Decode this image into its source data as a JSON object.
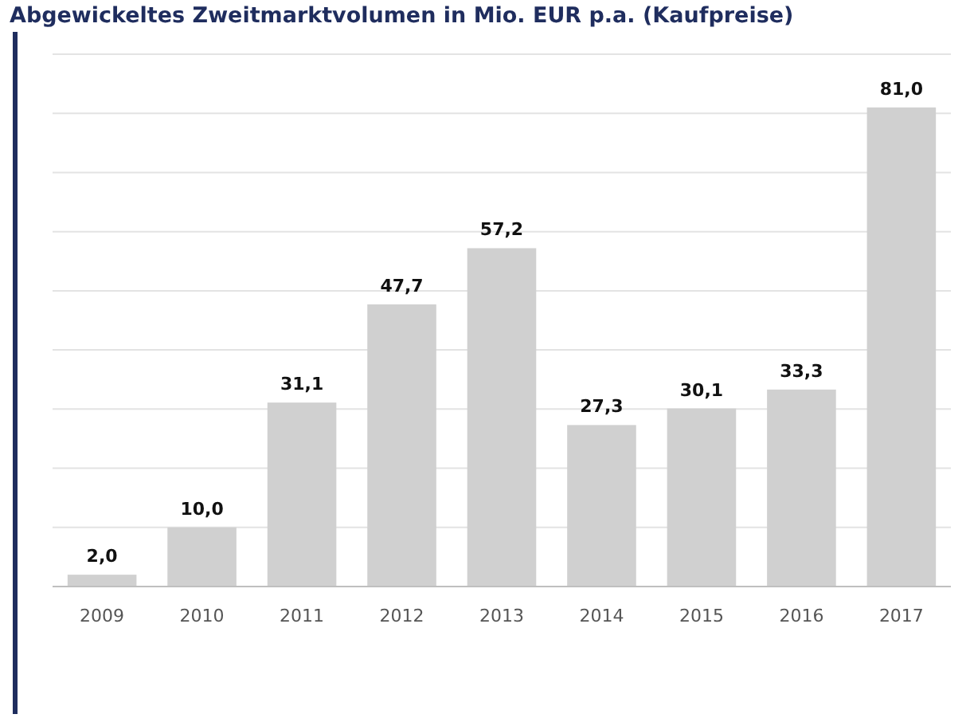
{
  "chart_data": {
    "type": "bar",
    "title": "Abgewickeltes Zweitmarktvolumen in Mio. EUR p.a. (Kaufpreise)",
    "categories": [
      "2009",
      "2010",
      "2011",
      "2012",
      "2013",
      "2014",
      "2015",
      "2016",
      "2017"
    ],
    "values": [
      2.0,
      10.0,
      31.1,
      47.7,
      57.2,
      27.3,
      30.1,
      33.3,
      81.0
    ],
    "value_labels": [
      "2,0",
      "10,0",
      "31,1",
      "47,7",
      "57,2",
      "27,3",
      "30,1",
      "33,3",
      "81,0"
    ],
    "color": "#d0d0d0",
    "ylim": [
      0,
      90
    ],
    "yticks": [
      {
        "value": 0,
        "label": null
      },
      {
        "value": 10,
        "label": null
      },
      {
        "value": 20,
        "label": null
      },
      {
        "value": 30,
        "label": null
      },
      {
        "value": 40,
        "label": null
      },
      {
        "value": 50,
        "label": null
      },
      {
        "value": 60,
        "label": null
      },
      {
        "value": 70,
        "label": null
      },
      {
        "value": 80,
        "label": null
      },
      {
        "value": 90,
        "label": null
      }
    ],
    "tick_labels": "x",
    "grid": "y"
  }
}
